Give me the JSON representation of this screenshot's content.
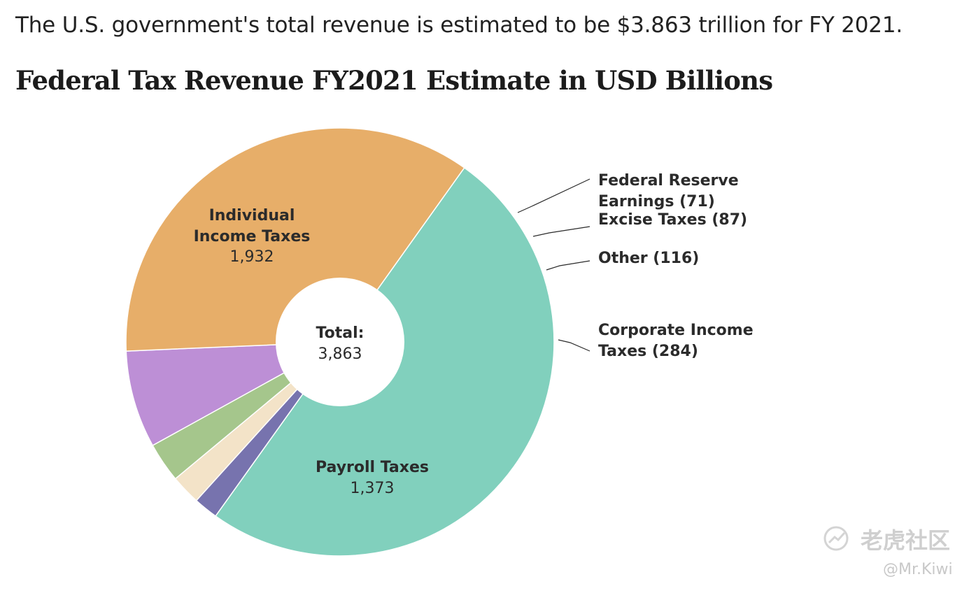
{
  "intro_text": "The U.S. government's total revenue is estimated to be $3.863 trillion for FY 2021.",
  "chart_data": {
    "type": "pie",
    "title": "Federal Tax Revenue FY2021 Estimate in USD Billions",
    "center_label": "Total:",
    "center_value": "3,863",
    "total": 3863,
    "slices": [
      {
        "name": "Individual Income Taxes",
        "value": 1932,
        "value_label": "1,932",
        "color": "#81d0bd"
      },
      {
        "name": "Federal Reserve Earnings",
        "value": 71,
        "value_label": "(71)",
        "color": "#7773ae"
      },
      {
        "name": "Excise Taxes",
        "value": 87,
        "value_label": "(87)",
        "color": "#f3e3c8"
      },
      {
        "name": "Other",
        "value": 116,
        "value_label": "(116)",
        "color": "#a5c68c"
      },
      {
        "name": "Corporate Income Taxes",
        "value": 284,
        "value_label": "(284)",
        "color": "#bd8fd6"
      },
      {
        "name": "Payroll Taxes",
        "value": 1373,
        "value_label": "1,373",
        "color": "#e7ae69"
      }
    ],
    "labels": {
      "individual": [
        "Individual",
        "Income Taxes",
        "1,932"
      ],
      "payroll": [
        "Payroll Taxes",
        "1,373"
      ],
      "fed_reserve": [
        "Federal Reserve",
        "Earnings (71)"
      ],
      "excise": [
        "Excise Taxes (87)"
      ],
      "other": [
        "Other (116)"
      ],
      "corporate": [
        "Corporate Income",
        "Taxes (284)"
      ]
    }
  },
  "watermark": {
    "brand": "老虎社区",
    "handle": "@Mr.Kiwi"
  }
}
